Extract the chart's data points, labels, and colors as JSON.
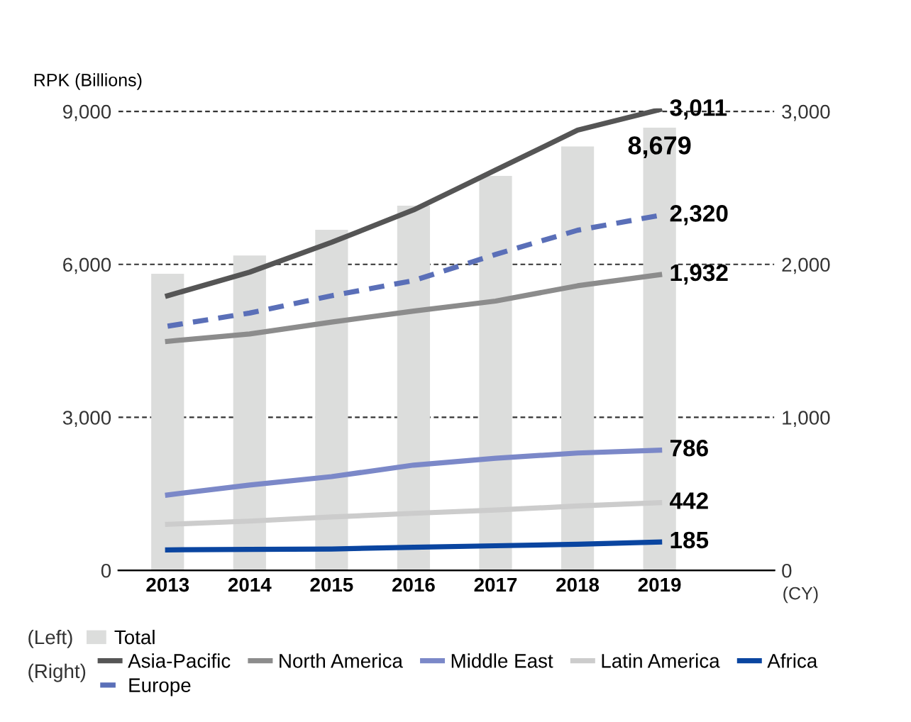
{
  "chart_data": {
    "type": "bar",
    "ylabel": "RPK (Billions)",
    "xlabel": "(CY)",
    "categories": [
      "2013",
      "2014",
      "2015",
      "2016",
      "2017",
      "2018",
      "2019"
    ],
    "series": [
      {
        "name": "Total",
        "color": "#dcdddc",
        "values": [
          5815,
          6175,
          6678,
          7151,
          7736,
          8312,
          8679
        ],
        "value_labels": [
          null,
          null,
          null,
          null,
          null,
          null,
          "8,679"
        ]
      },
      {
        "name": "Asia-Pacific",
        "type": "line",
        "axis": "y2",
        "color": "#555555",
        "line_style": "solid",
        "values": [
          1795,
          1949,
          2144,
          2356,
          2616,
          2877,
          3011
        ],
        "value_labels": [
          null,
          null,
          null,
          null,
          null,
          null,
          "3,011"
        ]
      },
      {
        "name": "Europe",
        "type": "line",
        "axis": "y2",
        "color": "#5a6fb8",
        "line_style": "dashed",
        "values": [
          1596,
          1682,
          1795,
          1894,
          2065,
          2223,
          2320
        ],
        "value_labels": [
          null,
          null,
          null,
          null,
          null,
          null,
          "2,320"
        ]
      },
      {
        "name": "North America",
        "type": "line",
        "axis": "y2",
        "color": "#8c8c8c",
        "line_style": "solid",
        "values": [
          1497,
          1545,
          1623,
          1695,
          1760,
          1860,
          1932
        ],
        "value_labels": [
          null,
          null,
          null,
          null,
          null,
          null,
          "1,932"
        ]
      },
      {
        "name": "Middle East",
        "type": "line",
        "axis": "y2",
        "color": "#7b88c8",
        "line_style": "solid",
        "values": [
          493,
          558,
          613,
          688,
          733,
          767,
          786
        ],
        "value_labels": [
          null,
          null,
          null,
          null,
          null,
          null,
          "786"
        ]
      },
      {
        "name": "Latin America",
        "type": "line",
        "axis": "y2",
        "color": "#cccccc",
        "line_style": "solid",
        "values": [
          301,
          322,
          349,
          373,
          394,
          421,
          442
        ],
        "value_labels": [
          null,
          null,
          null,
          null,
          null,
          null,
          "442"
        ]
      },
      {
        "name": "Africa",
        "type": "line",
        "axis": "y2",
        "color": "#0a45a0",
        "line_style": "solid",
        "values": [
          134,
          137,
          140,
          151,
          161,
          171,
          185
        ],
        "value_labels": [
          null,
          null,
          null,
          null,
          null,
          null,
          "185"
        ]
      }
    ],
    "ylim": [
      0,
      9060
    ],
    "yticks": [
      {
        "value": 0,
        "label": "0"
      },
      {
        "value": 3000,
        "label": "3,000"
      },
      {
        "value": 6000,
        "label": "6,000"
      },
      {
        "value": 9000,
        "label": "9,000"
      }
    ],
    "y2lim": [
      0,
      3020
    ],
    "y2ticks": [
      {
        "value": 0,
        "label": "0"
      },
      {
        "value": 1000,
        "label": "1,000"
      },
      {
        "value": 2000,
        "label": "2,000"
      },
      {
        "value": 3000,
        "label": "3,000"
      }
    ],
    "grid": "y",
    "legend": "bottom",
    "annotations": [
      "(Left)",
      "(Right)"
    ]
  }
}
